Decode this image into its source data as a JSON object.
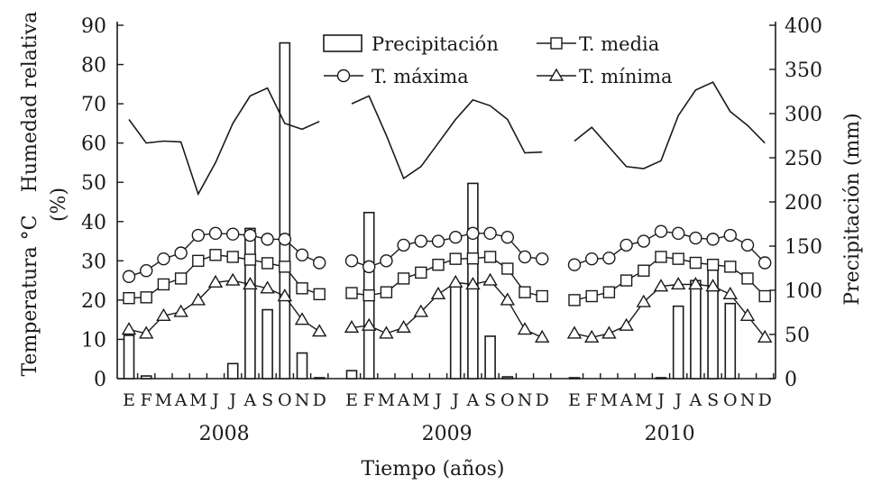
{
  "chart_data": {
    "type": "line+bar",
    "xlabel": "Tiempo (años)",
    "ylabel_left_1": "Humedad relativa",
    "ylabel_left_2": "(%)",
    "ylabel_left_3": "Temperatura °C",
    "ylabel_right": "Precipitación (mm)",
    "ylim_left": [
      0,
      90
    ],
    "ylim_right": [
      0,
      400
    ],
    "yticks_left": [
      "0",
      "10",
      "20",
      "30",
      "40",
      "50",
      "60",
      "70",
      "80",
      "90"
    ],
    "yticks_right": [
      "0",
      "50",
      "100",
      "150",
      "200",
      "250",
      "300",
      "350",
      "400"
    ],
    "years": [
      "2008",
      "2009",
      "2010"
    ],
    "months": [
      "E",
      "F",
      "M",
      "A",
      "M",
      "J",
      "J",
      "A",
      "S",
      "O",
      "N",
      "D"
    ],
    "legend": {
      "precip": "Precipitación",
      "tmedia": "T. media",
      "tmax": "T. máxima",
      "tmin": "T. mínima"
    },
    "series": [
      {
        "name": "Humedad relativa",
        "axis": "left",
        "style": "line",
        "values": [
          [
            66,
            60,
            60.5,
            60.3,
            47,
            55,
            65,
            72,
            74,
            65,
            63.5,
            65.5
          ],
          [
            70,
            72,
            62,
            51,
            54,
            60,
            66,
            71,
            69.5,
            66,
            57.5,
            57.7
          ],
          [
            60.5,
            64,
            59,
            54,
            53.5,
            55.5,
            67,
            73.5,
            75.5,
            68,
            64.5,
            60
          ]
        ]
      },
      {
        "name": "T. máxima",
        "axis": "left",
        "style": "line-circle",
        "values": [
          [
            26,
            27.5,
            30.5,
            32,
            36.5,
            37,
            36.8,
            36.5,
            35.5,
            35.5,
            31.5,
            29.5
          ],
          [
            30,
            28.5,
            30,
            34,
            35,
            35,
            36,
            37,
            37,
            36,
            31,
            30.5
          ],
          [
            29,
            30.5,
            30.7,
            34,
            35,
            37.5,
            37,
            35.8,
            35.5,
            36.5,
            34,
            29.5
          ]
        ]
      },
      {
        "name": "T. media",
        "axis": "left",
        "style": "line-square",
        "values": [
          [
            20.5,
            20.7,
            24,
            25.5,
            30,
            31.5,
            31,
            30.3,
            29.4,
            28.5,
            23,
            21.5
          ],
          [
            21.8,
            21.2,
            22,
            25.5,
            27,
            29,
            30.5,
            30.6,
            31,
            28,
            22,
            21
          ],
          [
            20,
            21,
            22,
            25,
            27.5,
            31,
            30.5,
            29.5,
            29,
            28.5,
            25.5,
            21
          ]
        ]
      },
      {
        "name": "T. mínima",
        "axis": "left",
        "style": "line-triangle",
        "values": [
          [
            12.5,
            11.5,
            16,
            17,
            20,
            24.5,
            25,
            24,
            23,
            21,
            15,
            12
          ],
          [
            13,
            13.5,
            11.5,
            13,
            17,
            21.5,
            24.5,
            24,
            25,
            20,
            12.5,
            10.5
          ],
          [
            11.5,
            10.5,
            11.5,
            13.5,
            19.5,
            23.5,
            24,
            24,
            23.5,
            21.5,
            16,
            10.5
          ]
        ]
      },
      {
        "name": "Precipitación",
        "axis": "right",
        "style": "bar",
        "values": [
          [
            49,
            3,
            0,
            0,
            0,
            0,
            17,
            170,
            78,
            380,
            29,
            1
          ],
          [
            9,
            188,
            0,
            0,
            0,
            0,
            104,
            221,
            48,
            2,
            0,
            0
          ],
          [
            1,
            0,
            0,
            0,
            0,
            1,
            82,
            111,
            123,
            85,
            0,
            0
          ]
        ]
      }
    ]
  }
}
